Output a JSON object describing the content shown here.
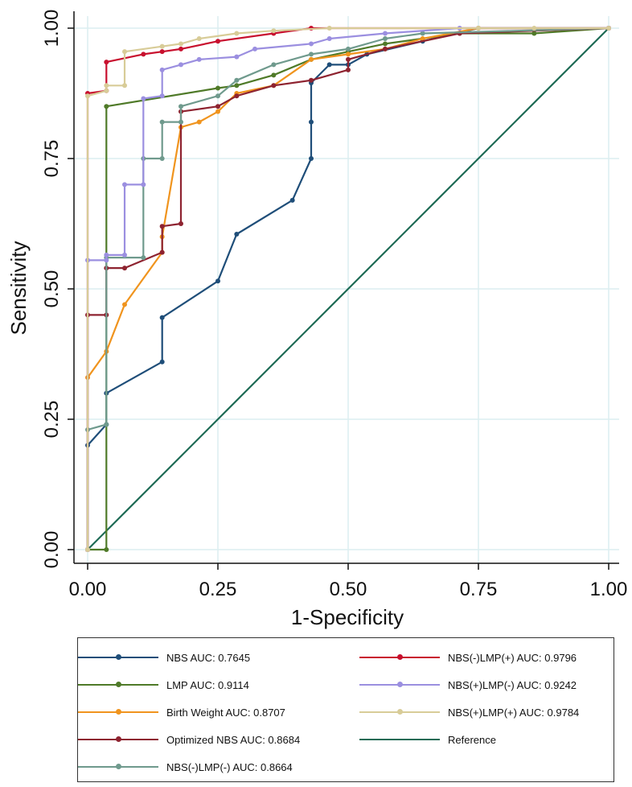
{
  "chart_data": {
    "type": "line",
    "xlabel": "1-Specificity",
    "ylabel": "Sensitivity",
    "xlim": [
      0,
      1
    ],
    "ylim": [
      0,
      1
    ],
    "x_ticks": [
      "0.00",
      "0.25",
      "0.50",
      "0.75",
      "1.00"
    ],
    "y_ticks": [
      "0.00",
      "0.25",
      "0.50",
      "0.75",
      "1.00"
    ],
    "grid": true,
    "legend_position": "bottom",
    "series": [
      {
        "name": "NBS AUC: 0.7645",
        "color": "#1f4e79",
        "markers": true,
        "points": [
          [
            0,
            0
          ],
          [
            0,
            0.2
          ],
          [
            0.036,
            0.24
          ],
          [
            0.036,
            0.3
          ],
          [
            0.143,
            0.36
          ],
          [
            0.143,
            0.445
          ],
          [
            0.25,
            0.515
          ],
          [
            0.286,
            0.605
          ],
          [
            0.393,
            0.67
          ],
          [
            0.429,
            0.75
          ],
          [
            0.429,
            0.82
          ],
          [
            0.429,
            0.895
          ],
          [
            0.464,
            0.93
          ],
          [
            0.5,
            0.93
          ],
          [
            0.536,
            0.95
          ],
          [
            0.643,
            0.975
          ],
          [
            0.75,
            1.0
          ],
          [
            1,
            1
          ]
        ]
      },
      {
        "name": "LMP AUC: 0.9114",
        "color": "#4f7a28",
        "markers": true,
        "points": [
          [
            0,
            0
          ],
          [
            0.036,
            0
          ],
          [
            0.036,
            0.85
          ],
          [
            0.25,
            0.885
          ],
          [
            0.286,
            0.89
          ],
          [
            0.357,
            0.91
          ],
          [
            0.429,
            0.94
          ],
          [
            0.5,
            0.955
          ],
          [
            0.571,
            0.97
          ],
          [
            0.714,
            0.99
          ],
          [
            0.857,
            0.99
          ],
          [
            1,
            1
          ]
        ]
      },
      {
        "name": "Birth Weight AUC: 0.8707",
        "color": "#f0941e",
        "markers": true,
        "points": [
          [
            0,
            0
          ],
          [
            0,
            0.33
          ],
          [
            0.036,
            0.38
          ],
          [
            0.071,
            0.47
          ],
          [
            0.143,
            0.57
          ],
          [
            0.143,
            0.6
          ],
          [
            0.179,
            0.81
          ],
          [
            0.214,
            0.82
          ],
          [
            0.25,
            0.84
          ],
          [
            0.286,
            0.875
          ],
          [
            0.357,
            0.89
          ],
          [
            0.429,
            0.94
          ],
          [
            0.5,
            0.95
          ],
          [
            0.571,
            0.96
          ],
          [
            0.643,
            0.98
          ],
          [
            0.75,
            1.0
          ],
          [
            1,
            1
          ]
        ]
      },
      {
        "name": "Optimized NBS AUC: 0.8684",
        "color": "#8e2330",
        "markers": true,
        "points": [
          [
            0,
            0
          ],
          [
            0,
            0.45
          ],
          [
            0.036,
            0.45
          ],
          [
            0.036,
            0.54
          ],
          [
            0.071,
            0.54
          ],
          [
            0.143,
            0.57
          ],
          [
            0.143,
            0.62
          ],
          [
            0.179,
            0.625
          ],
          [
            0.179,
            0.84
          ],
          [
            0.25,
            0.85
          ],
          [
            0.286,
            0.87
          ],
          [
            0.357,
            0.89
          ],
          [
            0.429,
            0.9
          ],
          [
            0.5,
            0.92
          ],
          [
            0.5,
            0.94
          ],
          [
            0.571,
            0.96
          ],
          [
            0.714,
            0.99
          ],
          [
            1,
            1
          ]
        ]
      },
      {
        "name": "NBS(-)LMP(-) AUC: 0.8664",
        "color": "#6f9a8d",
        "markers": true,
        "points": [
          [
            0,
            0
          ],
          [
            0,
            0.23
          ],
          [
            0.036,
            0.24
          ],
          [
            0.036,
            0.56
          ],
          [
            0.107,
            0.56
          ],
          [
            0.107,
            0.75
          ],
          [
            0.143,
            0.75
          ],
          [
            0.143,
            0.82
          ],
          [
            0.179,
            0.82
          ],
          [
            0.179,
            0.85
          ],
          [
            0.25,
            0.87
          ],
          [
            0.286,
            0.9
          ],
          [
            0.357,
            0.93
          ],
          [
            0.429,
            0.95
          ],
          [
            0.5,
            0.96
          ],
          [
            0.571,
            0.98
          ],
          [
            0.643,
            0.99
          ],
          [
            1,
            1
          ]
        ]
      },
      {
        "name": "NBS(-)LMP(+) AUC: 0.9796",
        "color": "#c8102e",
        "markers": true,
        "points": [
          [
            0,
            0
          ],
          [
            0,
            0.875
          ],
          [
            0.036,
            0.88
          ],
          [
            0.036,
            0.935
          ],
          [
            0.107,
            0.95
          ],
          [
            0.143,
            0.955
          ],
          [
            0.179,
            0.96
          ],
          [
            0.25,
            0.975
          ],
          [
            0.357,
            0.99
          ],
          [
            0.429,
            1.0
          ],
          [
            1,
            1
          ]
        ]
      },
      {
        "name": "NBS(+)LMP(-) AUC: 0.9242",
        "color": "#9b8fe0",
        "markers": true,
        "points": [
          [
            0,
            0
          ],
          [
            0,
            0.555
          ],
          [
            0.036,
            0.555
          ],
          [
            0.036,
            0.565
          ],
          [
            0.071,
            0.565
          ],
          [
            0.071,
            0.7
          ],
          [
            0.107,
            0.7
          ],
          [
            0.107,
            0.865
          ],
          [
            0.143,
            0.87
          ],
          [
            0.143,
            0.92
          ],
          [
            0.179,
            0.93
          ],
          [
            0.214,
            0.94
          ],
          [
            0.286,
            0.945
          ],
          [
            0.321,
            0.96
          ],
          [
            0.429,
            0.97
          ],
          [
            0.464,
            0.98
          ],
          [
            0.571,
            0.99
          ],
          [
            0.714,
            1.0
          ],
          [
            1,
            1
          ]
        ]
      },
      {
        "name": "NBS(+)LMP(+) AUC: 0.9784",
        "color": "#d8cc98",
        "markers": true,
        "points": [
          [
            0,
            0
          ],
          [
            0,
            0.87
          ],
          [
            0.036,
            0.88
          ],
          [
            0.036,
            0.89
          ],
          [
            0.071,
            0.89
          ],
          [
            0.071,
            0.955
          ],
          [
            0.143,
            0.965
          ],
          [
            0.179,
            0.97
          ],
          [
            0.214,
            0.98
          ],
          [
            0.286,
            0.99
          ],
          [
            0.357,
            0.995
          ],
          [
            0.464,
            1.0
          ],
          [
            0.75,
            1.0
          ],
          [
            0.857,
            1.0
          ],
          [
            1,
            1
          ]
        ]
      },
      {
        "name": "Reference",
        "color": "#1e6b55",
        "markers": false,
        "points": [
          [
            0,
            0
          ],
          [
            1,
            1
          ]
        ]
      }
    ]
  }
}
